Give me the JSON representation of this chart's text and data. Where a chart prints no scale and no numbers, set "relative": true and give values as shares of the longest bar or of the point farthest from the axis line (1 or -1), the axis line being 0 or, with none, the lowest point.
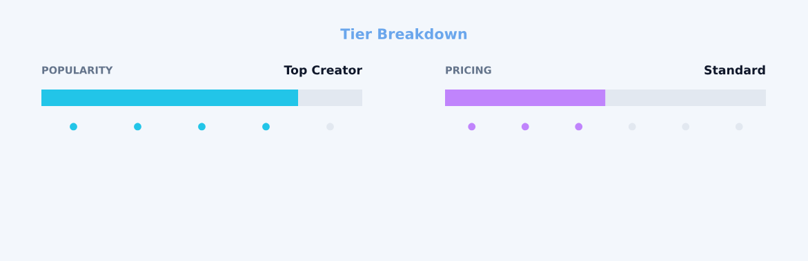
{
  "chart_data": [
    {
      "type": "other",
      "title": "Tier Breakdown"
    },
    {
      "type": "bar",
      "title": "POPULARITY",
      "subtitle": "Top Creator",
      "orientation": "horizontal",
      "stacked": true,
      "relative": true,
      "categories": [
        null
      ],
      "series": [
        {
          "color": "#22c5e8",
          "values": [
            0.8
          ]
        },
        {
          "color": "#e2e8f0",
          "values": [
            0.2
          ]
        }
      ]
    },
    {
      "type": "bar",
      "title": "PRICING",
      "subtitle": "Standard",
      "orientation": "horizontal",
      "stacked": true,
      "relative": true,
      "categories": [
        null
      ],
      "series": [
        {
          "color": "#c084fc",
          "values": [
            0.5
          ]
        },
        {
          "color": "#e2e8f0",
          "values": [
            0.5
          ]
        }
      ]
    }
  ]
}
